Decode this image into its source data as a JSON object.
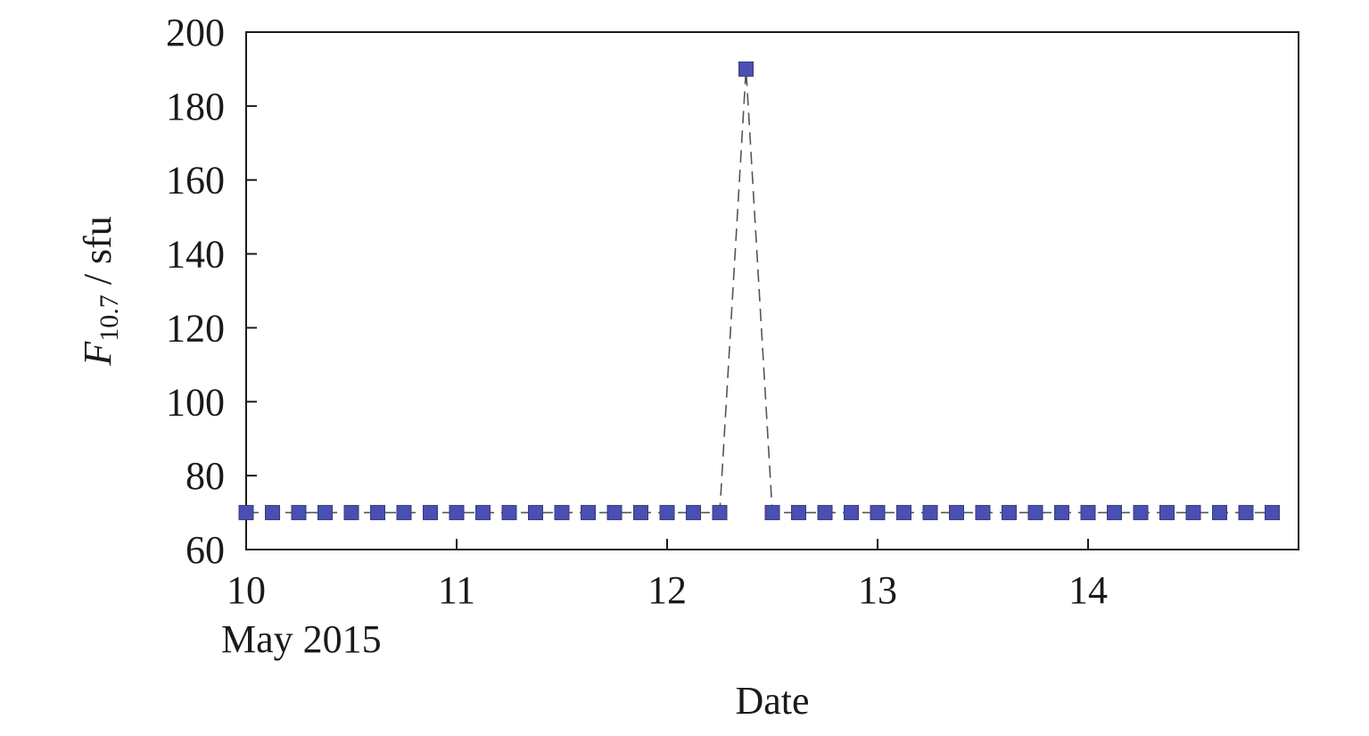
{
  "chart_data": {
    "type": "line",
    "xlabel": "Date",
    "x_date_label": "May 2015",
    "ylabel_symbol": "F",
    "ylabel_subscript": "10.7",
    "ylabel_unit": " / sfu",
    "x": [
      10,
      10.125,
      10.25,
      10.375,
      10.5,
      10.625,
      10.75,
      10.875,
      11,
      11.125,
      11.25,
      11.375,
      11.5,
      11.625,
      11.75,
      11.875,
      12,
      12.125,
      12.25,
      12.375,
      12.5,
      12.625,
      12.75,
      12.875,
      13,
      13.125,
      13.25,
      13.375,
      13.5,
      13.625,
      13.75,
      13.875,
      14,
      14.125,
      14.25,
      14.375,
      14.5,
      14.625,
      14.75,
      14.875
    ],
    "series": [
      {
        "color": "#4a4fb3",
        "values": [
          70,
          70,
          70,
          70,
          70,
          70,
          70,
          70,
          70,
          70,
          70,
          70,
          70,
          70,
          70,
          70,
          70,
          70,
          70,
          190,
          70,
          70,
          70,
          70,
          70,
          70,
          70,
          70,
          70,
          70,
          70,
          70,
          70,
          70,
          70,
          70,
          70,
          70,
          70,
          70
        ]
      }
    ],
    "line_style": "dashed",
    "xlim": [
      10,
      15
    ],
    "xticks": [
      10,
      11,
      12,
      13,
      14
    ],
    "ylim": [
      60,
      200
    ],
    "yticks": [
      60,
      80,
      100,
      120,
      140,
      160,
      180,
      200
    ]
  }
}
